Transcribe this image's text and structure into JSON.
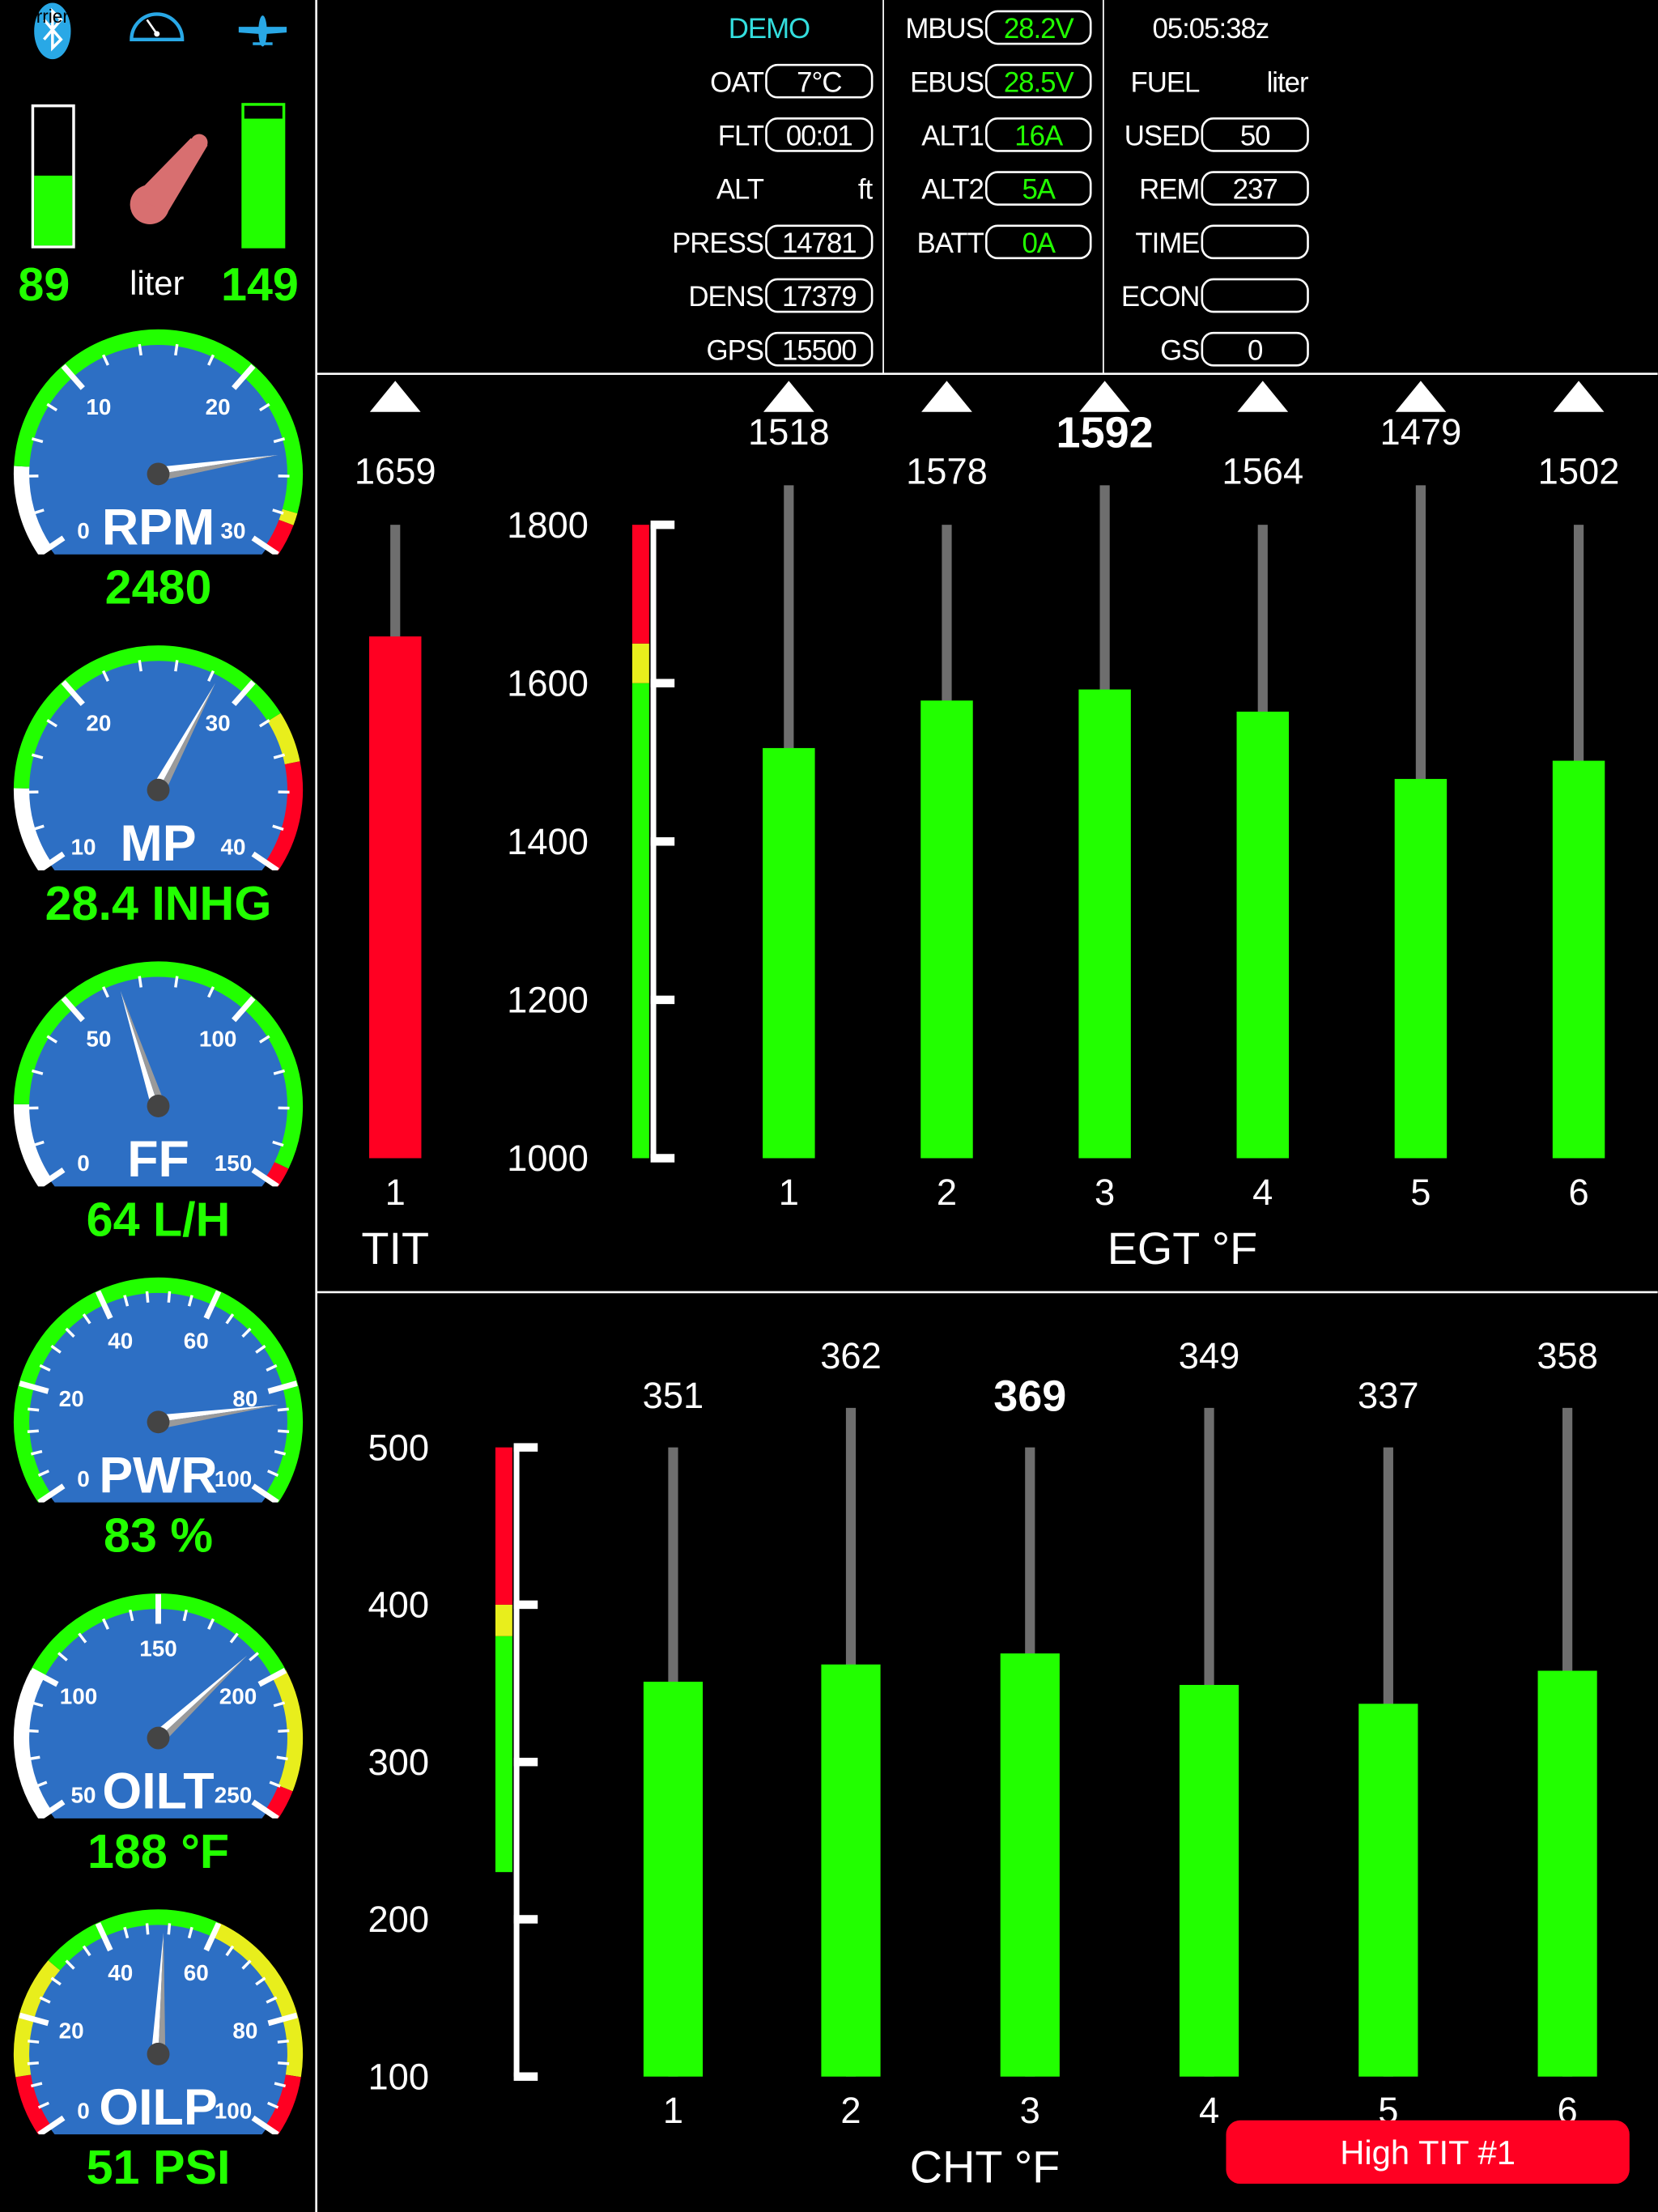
{
  "header_icons": {
    "carrier_text": "rrier",
    "bluetooth": "bluetooth-icon",
    "gauges": "gauge-icon",
    "aircraft": "airplane-icon"
  },
  "fuel_tanks": {
    "left_value": "89",
    "right_value": "149",
    "unit": "liter",
    "left_level": 0.5,
    "right_level": 0.9
  },
  "colors": {
    "green": "#22ff00",
    "yellow": "#e8ee1c",
    "red": "#ff0022",
    "white": "#ffffff",
    "dial": "#2d6fc4",
    "cyan": "#33dddd",
    "stem": "#6e6e6e",
    "fuel_pointer": "#d86f70",
    "icon_blue": "#29a8e6"
  },
  "gauges": [
    {
      "label": "RPM",
      "readout": "2480",
      "min": 0,
      "max": 30,
      "value": 24.8,
      "major": [
        0,
        10,
        20,
        30
      ],
      "minor_step": 2,
      "bands": [
        [
          "white",
          0,
          4.5
        ],
        [
          "green",
          4.5,
          27.8
        ],
        [
          "yellow",
          27.8,
          28.4
        ],
        [
          "red",
          28.4,
          30
        ]
      ]
    },
    {
      "label": "MP",
      "readout": "28.4 INHG",
      "min": 10,
      "max": 40,
      "value": 28.4,
      "major": [
        10,
        20,
        30,
        40
      ],
      "minor_step": 2,
      "bands": [
        [
          "white",
          10,
          14.2
        ],
        [
          "green",
          14.2,
          32
        ],
        [
          "yellow",
          32,
          34.5
        ],
        [
          "red",
          34.5,
          40
        ]
      ]
    },
    {
      "label": "FF",
      "readout": "64 L/H",
      "min": 0,
      "max": 150,
      "value": 64,
      "major": [
        0,
        50,
        100,
        150
      ],
      "minor_step": 10,
      "bands": [
        [
          "white",
          0,
          21
        ],
        [
          "green",
          21,
          145
        ],
        [
          "red",
          145,
          150
        ]
      ]
    },
    {
      "label": "PWR",
      "readout": "83 %",
      "min": 0,
      "max": 100,
      "value": 83,
      "major": [
        0,
        20,
        40,
        60,
        80,
        100
      ],
      "minor_step": 4,
      "bands": [
        [
          "green",
          0,
          100
        ]
      ]
    },
    {
      "label": "OILT",
      "readout": "188 °F",
      "min": 50,
      "max": 250,
      "value": 188,
      "major": [
        50,
        100,
        150,
        200,
        250
      ],
      "minor_step": 10,
      "bands": [
        [
          "white",
          50,
          100
        ],
        [
          "green",
          100,
          200
        ],
        [
          "yellow",
          200,
          240
        ],
        [
          "red",
          240,
          250
        ]
      ]
    },
    {
      "label": "OILP",
      "readout": "51 PSI",
      "min": 0,
      "max": 100,
      "value": 51,
      "major": [
        0,
        20,
        40,
        60,
        80,
        100
      ],
      "minor_step": 4,
      "bands": [
        [
          "red",
          0,
          10
        ],
        [
          "yellow",
          10,
          30
        ],
        [
          "green",
          30,
          60
        ],
        [
          "yellow",
          60,
          90
        ],
        [
          "red",
          90,
          100
        ]
      ]
    }
  ],
  "status": {
    "mode": "DEMO",
    "col1": [
      {
        "label": "OAT",
        "value": "7°C"
      },
      {
        "label": "FLT",
        "value": "00:01"
      },
      {
        "label": "ALT",
        "unit": "ft"
      },
      {
        "label": "PRESS",
        "value": "14781"
      },
      {
        "label": "DENS",
        "value": "17379"
      },
      {
        "label": "GPS",
        "value": "15500"
      }
    ],
    "col2": [
      {
        "label": "MBUS",
        "value": "28.2V"
      },
      {
        "label": "EBUS",
        "value": "28.5V"
      },
      {
        "label": "ALT1",
        "value": "16A"
      },
      {
        "label": "ALT2",
        "value": "5A"
      },
      {
        "label": "BATT",
        "value": "0A"
      }
    ],
    "time": "05:05:38z",
    "col3": [
      {
        "label": "FUEL",
        "unit": "liter"
      },
      {
        "label": "USED",
        "value": "50"
      },
      {
        "label": "REM",
        "value": "237"
      },
      {
        "label": "TIME",
        "value": ""
      },
      {
        "label": "ECON",
        "value": ""
      },
      {
        "label": "GS",
        "value": "0"
      }
    ]
  },
  "chart_data": [
    {
      "type": "bar",
      "xlabel": "TIT",
      "categories": [
        "1"
      ],
      "values": [
        1659
      ],
      "value_labels": [
        "1659"
      ],
      "ylim": [
        1000,
        1800
      ],
      "bands": [
        [
          "green",
          1000,
          1600
        ],
        [
          "yellow",
          1600,
          1650
        ],
        [
          "red",
          1650,
          1800
        ]
      ],
      "markers": true
    },
    {
      "type": "bar",
      "xlabel": "EGT °F",
      "categories": [
        "1",
        "2",
        "3",
        "4",
        "5",
        "6"
      ],
      "values": [
        1518,
        1578,
        1592,
        1564,
        1479,
        1502
      ],
      "value_labels": [
        "1518",
        "1578",
        "1592",
        "1564",
        "1479",
        "1502"
      ],
      "peak_index": 2,
      "ylim": [
        1000,
        1800
      ],
      "yticks": [
        1000,
        1200,
        1400,
        1600,
        1800
      ],
      "ytick_labels": [
        "1000",
        "1200",
        "1400",
        "1600",
        "1800"
      ],
      "bands": [
        [
          "green",
          1000,
          1600
        ],
        [
          "yellow",
          1600,
          1650
        ],
        [
          "red",
          1650,
          1800
        ]
      ],
      "markers": true,
      "grid": false
    },
    {
      "type": "bar",
      "xlabel": "CHT °F",
      "categories": [
        "1",
        "2",
        "3",
        "4",
        "5",
        "6"
      ],
      "values": [
        351,
        362,
        369,
        349,
        337,
        358
      ],
      "value_labels": [
        "351",
        "362",
        "369",
        "349",
        "337",
        "358"
      ],
      "peak_index": 2,
      "ylim": [
        100,
        500
      ],
      "yticks": [
        100,
        200,
        300,
        400,
        500
      ],
      "ytick_labels": [
        "100",
        "200",
        "300",
        "400",
        "500"
      ],
      "bands": [
        [
          "green",
          230,
          380
        ],
        [
          "yellow",
          380,
          400
        ],
        [
          "red",
          400,
          500
        ]
      ],
      "markers": false,
      "grid": false
    }
  ],
  "alert": {
    "text": "High TIT #1"
  }
}
